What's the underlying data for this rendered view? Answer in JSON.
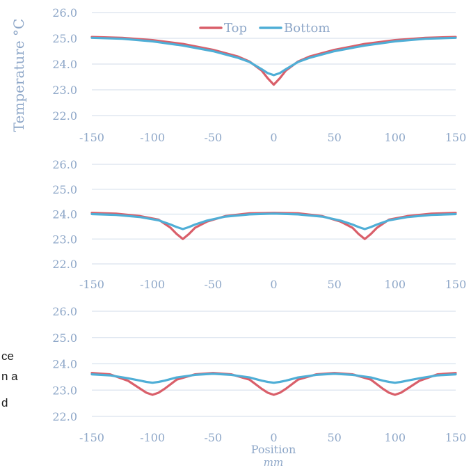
{
  "chart_data": [
    {
      "type": "line",
      "panel": "top",
      "ylabel": "Temperature °C",
      "xlabel": "",
      "xunit": "",
      "xlim": [
        -150,
        150
      ],
      "ylim": [
        22.0,
        26.0
      ],
      "xticks": [
        "-150",
        "-100",
        "-50",
        "0",
        "50",
        "100",
        "150"
      ],
      "yticks": [
        "22.0",
        "23.0",
        "24.0",
        "25.0",
        "26.0"
      ],
      "grid": "horizontal",
      "legend": "top-center",
      "series": [
        {
          "name": "Top",
          "color": "#D95F6A",
          "x": [
            -150,
            -125,
            -100,
            -75,
            -50,
            -30,
            -20,
            -10,
            -5,
            0,
            5,
            10,
            20,
            30,
            50,
            75,
            100,
            125,
            150
          ],
          "y": [
            25.05,
            25.02,
            24.93,
            24.78,
            24.55,
            24.3,
            24.1,
            23.75,
            23.45,
            23.2,
            23.45,
            23.75,
            24.1,
            24.3,
            24.55,
            24.78,
            24.93,
            25.02,
            25.05
          ]
        },
        {
          "name": "Bottom",
          "color": "#4FAED6",
          "x": [
            -150,
            -125,
            -100,
            -75,
            -50,
            -30,
            -20,
            -10,
            -5,
            0,
            5,
            10,
            20,
            30,
            50,
            75,
            100,
            125,
            150
          ],
          "y": [
            25.02,
            24.98,
            24.88,
            24.72,
            24.5,
            24.25,
            24.08,
            23.8,
            23.65,
            23.57,
            23.65,
            23.8,
            24.08,
            24.25,
            24.5,
            24.72,
            24.88,
            24.98,
            25.02
          ]
        }
      ]
    },
    {
      "type": "line",
      "panel": "middle",
      "ylabel": "",
      "xlabel": "",
      "xunit": "",
      "xlim": [
        -150,
        150
      ],
      "ylim": [
        22.0,
        26.0
      ],
      "xticks": [
        "-150",
        "-100",
        "-50",
        "0",
        "50",
        "100",
        "150"
      ],
      "yticks": [
        "22.0",
        "23.0",
        "24.0",
        "25.0",
        "26.0"
      ],
      "grid": "horizontal",
      "legend": "none",
      "series": [
        {
          "name": "Top",
          "color": "#D95F6A",
          "x": [
            -150,
            -130,
            -110,
            -95,
            -85,
            -80,
            -75,
            -70,
            -65,
            -55,
            -40,
            -20,
            0,
            20,
            40,
            55,
            65,
            70,
            75,
            80,
            85,
            95,
            110,
            130,
            150
          ],
          "y": [
            24.05,
            24.02,
            23.92,
            23.78,
            23.45,
            23.2,
            23.0,
            23.2,
            23.45,
            23.7,
            23.92,
            24.03,
            24.05,
            24.03,
            23.92,
            23.7,
            23.45,
            23.2,
            23.0,
            23.2,
            23.45,
            23.78,
            23.92,
            24.02,
            24.05
          ]
        },
        {
          "name": "Bottom",
          "color": "#4FAED6",
          "x": [
            -150,
            -130,
            -110,
            -95,
            -85,
            -80,
            -75,
            -70,
            -65,
            -55,
            -40,
            -20,
            0,
            20,
            40,
            55,
            65,
            70,
            75,
            80,
            85,
            95,
            110,
            130,
            150
          ],
          "y": [
            24.0,
            23.97,
            23.88,
            23.75,
            23.58,
            23.48,
            23.4,
            23.48,
            23.58,
            23.74,
            23.9,
            23.99,
            24.02,
            23.99,
            23.9,
            23.74,
            23.58,
            23.48,
            23.4,
            23.48,
            23.58,
            23.75,
            23.88,
            23.97,
            24.0
          ]
        }
      ]
    },
    {
      "type": "line",
      "panel": "bottom",
      "ylabel": "",
      "xlabel": "Position",
      "xunit": "mm",
      "xlim": [
        -150,
        150
      ],
      "ylim": [
        22.0,
        26.0
      ],
      "xticks": [
        "-150",
        "-100",
        "-50",
        "0",
        "50",
        "100",
        "150"
      ],
      "yticks": [
        "22.0",
        "23.0",
        "24.0",
        "25.0",
        "26.0"
      ],
      "grid": "horizontal",
      "legend": "none",
      "series": [
        {
          "name": "Top",
          "color": "#D95F6A",
          "x": [
            -150,
            -135,
            -120,
            -110,
            -105,
            -100,
            -95,
            -90,
            -80,
            -65,
            -50,
            -35,
            -20,
            -10,
            -5,
            0,
            5,
            10,
            20,
            35,
            50,
            65,
            80,
            90,
            95,
            100,
            105,
            110,
            120,
            135,
            150
          ],
          "y": [
            23.65,
            23.6,
            23.35,
            23.05,
            22.9,
            22.82,
            22.9,
            23.05,
            23.4,
            23.6,
            23.65,
            23.6,
            23.4,
            23.05,
            22.9,
            22.82,
            22.9,
            23.05,
            23.4,
            23.6,
            23.65,
            23.6,
            23.4,
            23.05,
            22.9,
            22.82,
            22.9,
            23.05,
            23.35,
            23.6,
            23.65
          ]
        },
        {
          "name": "Bottom",
          "color": "#4FAED6",
          "x": [
            -150,
            -135,
            -120,
            -110,
            -105,
            -100,
            -95,
            -90,
            -80,
            -65,
            -50,
            -35,
            -20,
            -10,
            -5,
            0,
            5,
            10,
            20,
            35,
            50,
            65,
            80,
            90,
            95,
            100,
            105,
            110,
            120,
            135,
            150
          ],
          "y": [
            23.6,
            23.56,
            23.45,
            23.36,
            23.31,
            23.28,
            23.31,
            23.36,
            23.48,
            23.58,
            23.62,
            23.58,
            23.48,
            23.36,
            23.31,
            23.28,
            23.31,
            23.36,
            23.48,
            23.58,
            23.62,
            23.58,
            23.48,
            23.36,
            23.31,
            23.28,
            23.31,
            23.36,
            23.45,
            23.56,
            23.6
          ]
        }
      ]
    }
  ],
  "text_fragments": [
    "ce",
    "n a",
    "d"
  ]
}
